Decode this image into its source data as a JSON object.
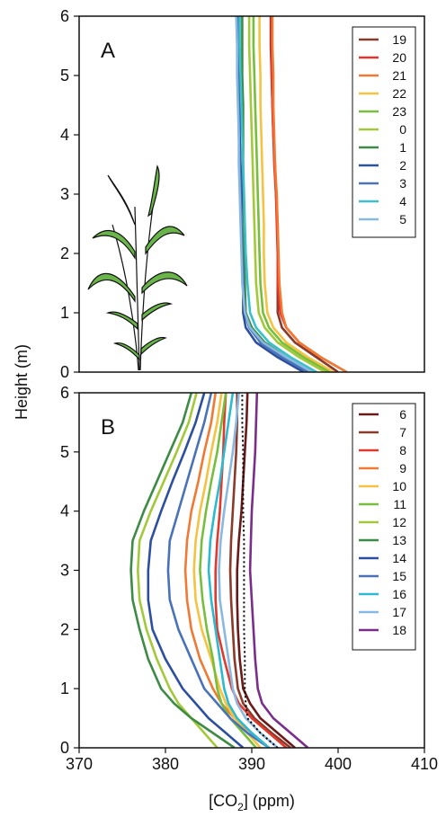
{
  "chart_data": [
    {
      "type": "line",
      "panel_label": "A",
      "heights": [
        0,
        0.25,
        0.5,
        0.75,
        1,
        1.5,
        2,
        2.5,
        3,
        3.5,
        4,
        4.5,
        5,
        5.5,
        6
      ],
      "xlim": [
        370,
        410
      ],
      "ylim": [
        0,
        6
      ],
      "yticks": [
        0,
        1,
        2,
        3,
        4,
        5,
        6
      ],
      "series": [
        {
          "name": "19",
          "color": "#8b3a2a",
          "values": [
            400,
            397.5,
            395,
            393.5,
            393,
            393,
            393,
            393,
            392.8,
            392.7,
            392.5,
            392.4,
            392.3,
            392.2,
            392.2
          ]
        },
        {
          "name": "20",
          "color": "#e8332a",
          "values": [
            401,
            398,
            395.5,
            394,
            393.3,
            393,
            393,
            392.9,
            392.8,
            392.6,
            392.5,
            392.4,
            392.3,
            392.3,
            392.3
          ]
        },
        {
          "name": "21",
          "color": "#f07a33",
          "values": [
            401,
            398,
            395.5,
            394,
            393.5,
            393.2,
            393.1,
            393,
            392.9,
            392.7,
            392.6,
            392.5,
            392.5,
            392.4,
            392.4
          ]
        },
        {
          "name": "22",
          "color": "#f5c242",
          "values": [
            399.5,
            396.5,
            394,
            392.5,
            391.8,
            391.5,
            391.4,
            391.4,
            391.3,
            391.2,
            391.1,
            391,
            391,
            390.9,
            390.9
          ]
        },
        {
          "name": "23",
          "color": "#77be3e",
          "values": [
            399,
            396,
            393.5,
            392,
            391.3,
            391,
            390.9,
            390.8,
            390.7,
            390.6,
            390.5,
            390.4,
            390.3,
            390.2,
            390.2
          ]
        },
        {
          "name": "0",
          "color": "#a3c93a",
          "values": [
            398.5,
            395.5,
            393,
            391.5,
            390.8,
            390.5,
            390.4,
            390.3,
            390.2,
            390.1,
            390,
            389.9,
            389.8,
            389.7,
            389.7
          ]
        },
        {
          "name": "1",
          "color": "#3d8b45",
          "values": [
            397,
            394,
            391.5,
            390,
            389.3,
            389.2,
            389.1,
            389.1,
            389,
            389,
            389,
            389,
            388.9,
            388.9,
            388.9
          ]
        },
        {
          "name": "2",
          "color": "#2c4fa0",
          "values": [
            396,
            393,
            390.5,
            389.3,
            389,
            389,
            388.9,
            388.8,
            388.8,
            388.7,
            388.6,
            388.6,
            388.5,
            388.5,
            388.5
          ]
        },
        {
          "name": "3",
          "color": "#4a72b8",
          "values": [
            396.5,
            393.5,
            391,
            389.7,
            389.2,
            389,
            388.9,
            388.8,
            388.7,
            388.6,
            388.5,
            388.5,
            388.4,
            388.4,
            388.4
          ]
        },
        {
          "name": "4",
          "color": "#3bbfc9",
          "values": [
            397.5,
            394.5,
            392,
            390.5,
            389.8,
            389.5,
            389.3,
            389.2,
            389.1,
            389,
            388.9,
            388.8,
            388.7,
            388.6,
            388.6
          ]
        },
        {
          "name": "5",
          "color": "#89b9e0",
          "values": [
            397,
            394,
            391.3,
            389.8,
            389.2,
            388.9,
            388.8,
            388.7,
            388.6,
            388.5,
            388.5,
            388.4,
            388.3,
            388.3,
            388.2
          ]
        }
      ]
    },
    {
      "type": "line",
      "panel_label": "B",
      "xlabel": [
        "[CO",
        "2",
        "] (ppm)"
      ],
      "ylabel": "Height (m)",
      "heights": [
        0,
        0.25,
        0.5,
        0.75,
        1,
        1.5,
        2,
        2.5,
        3,
        3.5,
        4,
        4.5,
        5,
        5.5,
        6
      ],
      "xlim": [
        370,
        410
      ],
      "xticks": [
        370,
        380,
        390,
        400,
        410
      ],
      "ylim": [
        0,
        6
      ],
      "yticks": [
        0,
        1,
        2,
        3,
        4,
        5,
        6
      ],
      "series": [
        {
          "name": "6",
          "color": "#6b1a1a",
          "values": [
            395,
            393,
            391,
            389.8,
            389,
            388.6,
            388.4,
            388.3,
            388.3,
            388.5,
            388.8,
            389,
            389.2,
            389.4,
            389.5
          ]
        },
        {
          "name": "7",
          "color": "#8b3a2a",
          "values": [
            394.5,
            392.3,
            390.3,
            389,
            388.4,
            388,
            387.8,
            387.6,
            387.5,
            387.6,
            387.8,
            388,
            388.2,
            388.3,
            388.3
          ]
        },
        {
          "name": "8",
          "color": "#e03a2f",
          "values": [
            394,
            392,
            390,
            388.5,
            387.7,
            386.8,
            386,
            385.8,
            385.8,
            386,
            386.3,
            386.5,
            386.7,
            386.8,
            387
          ]
        },
        {
          "name": "9",
          "color": "#f07a33",
          "values": [
            392,
            390,
            388,
            386.5,
            385.5,
            384,
            383,
            382.5,
            382.3,
            382.5,
            383,
            383.8,
            384.5,
            385.3,
            385.8
          ]
        },
        {
          "name": "10",
          "color": "#f5c242",
          "values": [
            391,
            389.5,
            388,
            387,
            386.3,
            385.3,
            384.2,
            383.5,
            383.3,
            383.5,
            384,
            384.7,
            385.3,
            386,
            386.5
          ]
        },
        {
          "name": "11",
          "color": "#77be3e",
          "values": [
            390.5,
            389,
            387.5,
            386.5,
            386,
            385.5,
            384.8,
            384.3,
            384,
            384.2,
            384.7,
            385.3,
            386,
            386.5,
            387
          ]
        },
        {
          "name": "12",
          "color": "#a3c93a",
          "values": [
            386,
            384.5,
            383,
            381.5,
            380.5,
            379,
            377.8,
            377,
            376.8,
            377,
            378.3,
            379.8,
            381.3,
            382.7,
            383.6
          ]
        },
        {
          "name": "13",
          "color": "#3d8b45",
          "values": [
            388,
            385.5,
            383,
            381,
            379.5,
            378,
            377,
            376.2,
            376,
            376.2,
            377.5,
            379,
            380.5,
            382,
            383
          ]
        },
        {
          "name": "14",
          "color": "#2c4fa0",
          "values": [
            389,
            387,
            385,
            383.5,
            382,
            380,
            378.5,
            378,
            378,
            378.3,
            379.5,
            380.8,
            382.2,
            383.5,
            384.5
          ]
        },
        {
          "name": "15",
          "color": "#4a72b8",
          "values": [
            392,
            389.5,
            387.5,
            386,
            384.5,
            383,
            381.5,
            380.5,
            380.3,
            380.5,
            381.5,
            382.5,
            383.5,
            384.5,
            385.3
          ]
        },
        {
          "name": "16",
          "color": "#2bbad0",
          "values": [
            392,
            390,
            388.3,
            387.3,
            386.8,
            386.3,
            385.8,
            385.3,
            385,
            385.2,
            385.7,
            386.3,
            386.8,
            387.3,
            387.8
          ]
        },
        {
          "name": "17",
          "color": "#89b9e0",
          "values": [
            393,
            391,
            389.3,
            388.3,
            387.8,
            387.3,
            386.8,
            386.3,
            386.2,
            386.4,
            386.8,
            387.3,
            387.8,
            388.2,
            388.5
          ]
        },
        {
          "name": "18",
          "color": "#7b2d8b",
          "values": [
            396.5,
            394.5,
            392.5,
            391.2,
            390.7,
            390.4,
            390.2,
            390,
            389.8,
            389.9,
            390,
            390.2,
            390.4,
            390.5,
            390.6
          ]
        },
        {
          "color": "#000000",
          "dash": "dotted",
          "values": [
            393,
            391,
            389.5,
            389.3,
            389.2,
            389.2,
            389.1,
            389.1,
            389.1,
            389.1,
            389,
            389,
            389,
            388.9,
            388.9
          ]
        }
      ]
    }
  ]
}
